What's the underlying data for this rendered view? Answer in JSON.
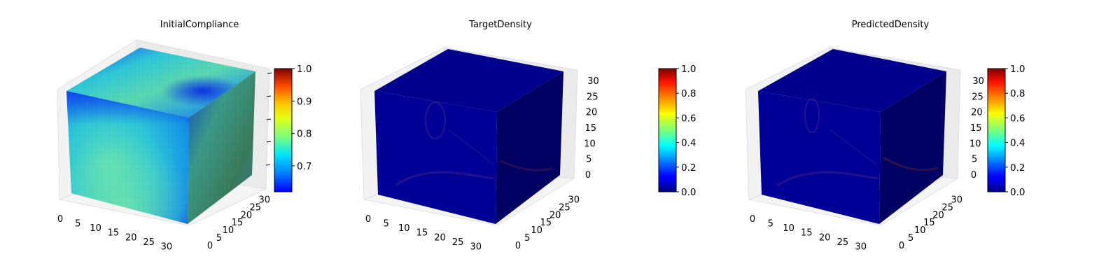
{
  "chart_data": [
    {
      "type": "voxel-3d",
      "title": "InitialCompliance",
      "x_ticks": [
        "0",
        "5",
        "10",
        "15",
        "20",
        "25",
        "30"
      ],
      "y_ticks": [
        "0",
        "5",
        "10",
        "15",
        "20",
        "25",
        "30"
      ],
      "z_ticks": [],
      "grid_size": 32,
      "colormap": "jet",
      "colorbar": {
        "min": 0.62,
        "max": 1.0,
        "ticks": [
          {
            "value": 0.7,
            "label": "0.7"
          },
          {
            "value": 0.8,
            "label": "0.8"
          },
          {
            "value": 0.9,
            "label": "0.9"
          },
          {
            "value": 1.0,
            "label": "1.0"
          }
        ]
      },
      "value_range_shown": [
        0.62,
        0.85
      ]
    },
    {
      "type": "voxel-3d",
      "title": "TargetDensity",
      "x_ticks": [
        "0",
        "5",
        "10",
        "15",
        "20",
        "25",
        "30"
      ],
      "y_ticks": [
        "0",
        "5",
        "10",
        "15",
        "20",
        "25",
        "30"
      ],
      "z_ticks": [
        "0",
        "5",
        "10",
        "15",
        "20",
        "25",
        "30"
      ],
      "grid_size": 32,
      "colormap": "jet",
      "colorbar": {
        "min": 0.0,
        "max": 1.0,
        "ticks": [
          {
            "value": 0.0,
            "label": "0.0"
          },
          {
            "value": 0.2,
            "label": "0.2"
          },
          {
            "value": 0.4,
            "label": "0.4"
          },
          {
            "value": 0.6,
            "label": "0.6"
          },
          {
            "value": 0.8,
            "label": "0.8"
          },
          {
            "value": 1.0,
            "label": "1.0"
          }
        ]
      }
    },
    {
      "type": "voxel-3d",
      "title": "PredictedDensity",
      "x_ticks": [
        "0",
        "5",
        "10",
        "15",
        "20",
        "25",
        "30"
      ],
      "y_ticks": [
        "0",
        "5",
        "10",
        "15",
        "20",
        "25",
        "30"
      ],
      "z_ticks": [
        "0",
        "5",
        "10",
        "15",
        "20",
        "25",
        "30"
      ],
      "grid_size": 32,
      "colormap": "jet",
      "colorbar": {
        "min": 0.0,
        "max": 1.0,
        "ticks": [
          {
            "value": 0.0,
            "label": "0.0"
          },
          {
            "value": 0.2,
            "label": "0.2"
          },
          {
            "value": 0.4,
            "label": "0.4"
          },
          {
            "value": 0.6,
            "label": "0.6"
          },
          {
            "value": 0.8,
            "label": "0.8"
          },
          {
            "value": 1.0,
            "label": "1.0"
          }
        ]
      }
    }
  ]
}
